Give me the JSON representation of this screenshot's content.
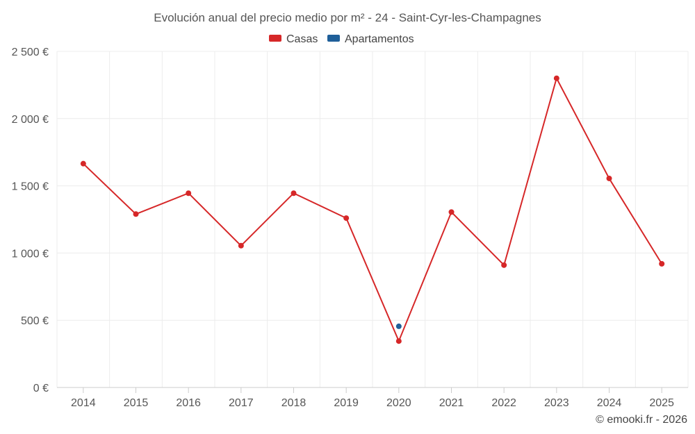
{
  "chart_data": {
    "type": "line",
    "title": "Evolución anual del precio medio por m² - 24 - Saint-Cyr-les-Champagnes",
    "categories": [
      "2014",
      "2015",
      "2016",
      "2017",
      "2018",
      "2019",
      "2020",
      "2021",
      "2022",
      "2023",
      "2024",
      "2025"
    ],
    "y_ticks": [
      "0 €",
      "500 €",
      "1 000 €",
      "1 500 €",
      "2 000 €",
      "2 500 €"
    ],
    "ylim": [
      0,
      2500
    ],
    "grid": true,
    "legend_position": "top-center",
    "series": [
      {
        "name": "Casas",
        "color": "#d62728",
        "values": [
          1665,
          1290,
          1445,
          1055,
          1445,
          1260,
          345,
          1305,
          910,
          2300,
          1555,
          920
        ]
      },
      {
        "name": "Apartamentos",
        "color": "#1f5f99",
        "values": [
          null,
          null,
          null,
          null,
          null,
          null,
          455,
          null,
          null,
          null,
          null,
          null
        ]
      }
    ]
  },
  "credit": "© emooki.fr - 2026"
}
